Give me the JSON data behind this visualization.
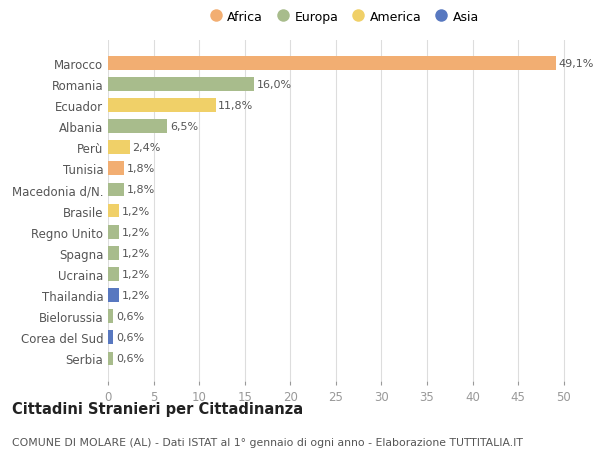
{
  "categories": [
    "Marocco",
    "Romania",
    "Ecuador",
    "Albania",
    "Perù",
    "Tunisia",
    "Macedonia d/N.",
    "Brasile",
    "Regno Unito",
    "Spagna",
    "Ucraina",
    "Thailandia",
    "Bielorussia",
    "Corea del Sud",
    "Serbia"
  ],
  "values": [
    49.1,
    16.0,
    11.8,
    6.5,
    2.4,
    1.8,
    1.8,
    1.2,
    1.2,
    1.2,
    1.2,
    1.2,
    0.6,
    0.6,
    0.6
  ],
  "labels": [
    "49,1%",
    "16,0%",
    "11,8%",
    "6,5%",
    "2,4%",
    "1,8%",
    "1,8%",
    "1,2%",
    "1,2%",
    "1,2%",
    "1,2%",
    "1,2%",
    "0,6%",
    "0,6%",
    "0,6%"
  ],
  "continents": [
    "Africa",
    "Europa",
    "America",
    "Europa",
    "America",
    "Africa",
    "Europa",
    "America",
    "Europa",
    "Europa",
    "Europa",
    "Asia",
    "Europa",
    "Asia",
    "Europa"
  ],
  "continent_colors": {
    "Africa": "#F2AE72",
    "Europa": "#A8BC8C",
    "America": "#F0D068",
    "Asia": "#5878C0"
  },
  "legend_order": [
    "Africa",
    "Europa",
    "America",
    "Asia"
  ],
  "title": "Cittadini Stranieri per Cittadinanza",
  "subtitle": "COMUNE DI MOLARE (AL) - Dati ISTAT al 1° gennaio di ogni anno - Elaborazione TUTTITALIA.IT",
  "xlim": [
    0,
    52
  ],
  "xticks": [
    0,
    5,
    10,
    15,
    20,
    25,
    30,
    35,
    40,
    45,
    50
  ],
  "bg_color": "#FFFFFF",
  "grid_color": "#DDDDDD",
  "bar_height": 0.65,
  "label_fontsize": 8.0,
  "ytick_fontsize": 8.5,
  "xtick_fontsize": 8.5,
  "title_fontsize": 10.5,
  "subtitle_fontsize": 7.8
}
